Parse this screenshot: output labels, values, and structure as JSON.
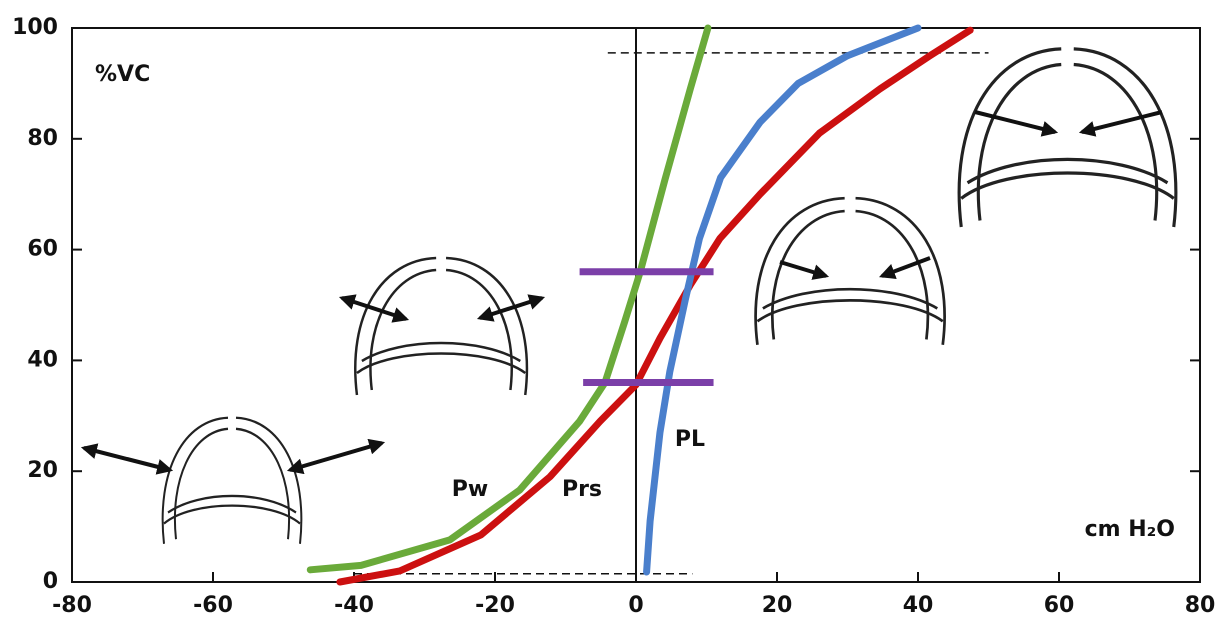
{
  "chart_data": {
    "type": "line",
    "y_label": "%VC",
    "x_label": "cm H₂O",
    "xlim": [
      -80,
      80
    ],
    "xticks": [
      -80,
      -60,
      -40,
      -20,
      0,
      20,
      40,
      60,
      80
    ],
    "ylim": [
      0,
      100
    ],
    "yticks": [
      0,
      20,
      40,
      60,
      80,
      100
    ],
    "grid": false,
    "vertical_lines": [
      0
    ],
    "series": [
      {
        "name": "Pw",
        "color": "#6aaa3a",
        "x": [
          -46.2,
          -39,
          -26.4,
          -16.5,
          -8,
          -4.4,
          -1.6,
          0.6,
          4.1,
          7.7,
          10.2
        ],
        "values": [
          2.2,
          3,
          7.6,
          16.6,
          29,
          36,
          47,
          56,
          72.6,
          89,
          100
        ]
      },
      {
        "name": "Prs",
        "color": "#cc1010",
        "x": [
          -42,
          -33.5,
          -22,
          -12.2,
          -5.1,
          0,
          3.4,
          7.7,
          11.9,
          17.6,
          26,
          34.6,
          41.7,
          47.4
        ],
        "values": [
          0,
          2,
          8.5,
          19,
          29,
          35.6,
          44,
          53.6,
          62,
          70,
          81,
          89,
          95,
          99.6
        ]
      },
      {
        "name": "PL",
        "color": "#4a7fcc",
        "x": [
          1.5,
          2,
          3.4,
          4.8,
          7,
          9,
          12,
          17.6,
          23,
          30,
          40
        ],
        "values": [
          1.8,
          11,
          27,
          38,
          51,
          62,
          73,
          83,
          90,
          95,
          100
        ]
      }
    ],
    "reference_lines": [
      {
        "y": 56,
        "x": [
          -8,
          11
        ],
        "color": "#7b3fa8"
      },
      {
        "y": 36,
        "x": [
          -7.5,
          11
        ],
        "color": "#7b3fa8"
      }
    ],
    "dashed_lines": [
      {
        "y": 1.5,
        "x": [
          -40,
          8
        ]
      },
      {
        "y": 95.5,
        "x": [
          -4,
          50
        ]
      }
    ]
  }
}
